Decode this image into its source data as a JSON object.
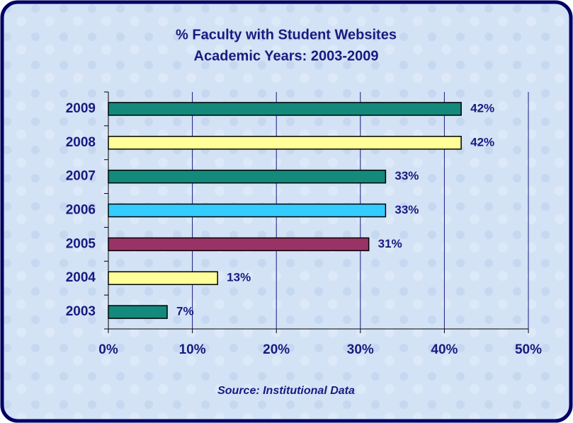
{
  "chart_data": {
    "type": "bar",
    "orientation": "horizontal",
    "title": "% Faculty with Student Websites",
    "subtitle": "Academic Years: 2003-2009",
    "source": "Source: Institutional Data",
    "categories": [
      "2003",
      "2004",
      "2005",
      "2006",
      "2007",
      "2008",
      "2009"
    ],
    "values": [
      7,
      13,
      31,
      33,
      33,
      42,
      42
    ],
    "value_labels": [
      "7%",
      "13%",
      "31%",
      "33%",
      "33%",
      "42%",
      "42%"
    ],
    "colors": [
      "#138a7c",
      "#ffff99",
      "#993366",
      "#33ccff",
      "#138a7c",
      "#ffff99",
      "#138a7c"
    ],
    "xlim": [
      0,
      50
    ],
    "xticks": [
      {
        "value": 0,
        "label": "0%"
      },
      {
        "value": 10,
        "label": "10%"
      },
      {
        "value": 20,
        "label": "20%"
      },
      {
        "value": 30,
        "label": "30%"
      },
      {
        "value": 40,
        "label": "40%"
      },
      {
        "value": 50,
        "label": "50%"
      }
    ],
    "grid": true
  }
}
